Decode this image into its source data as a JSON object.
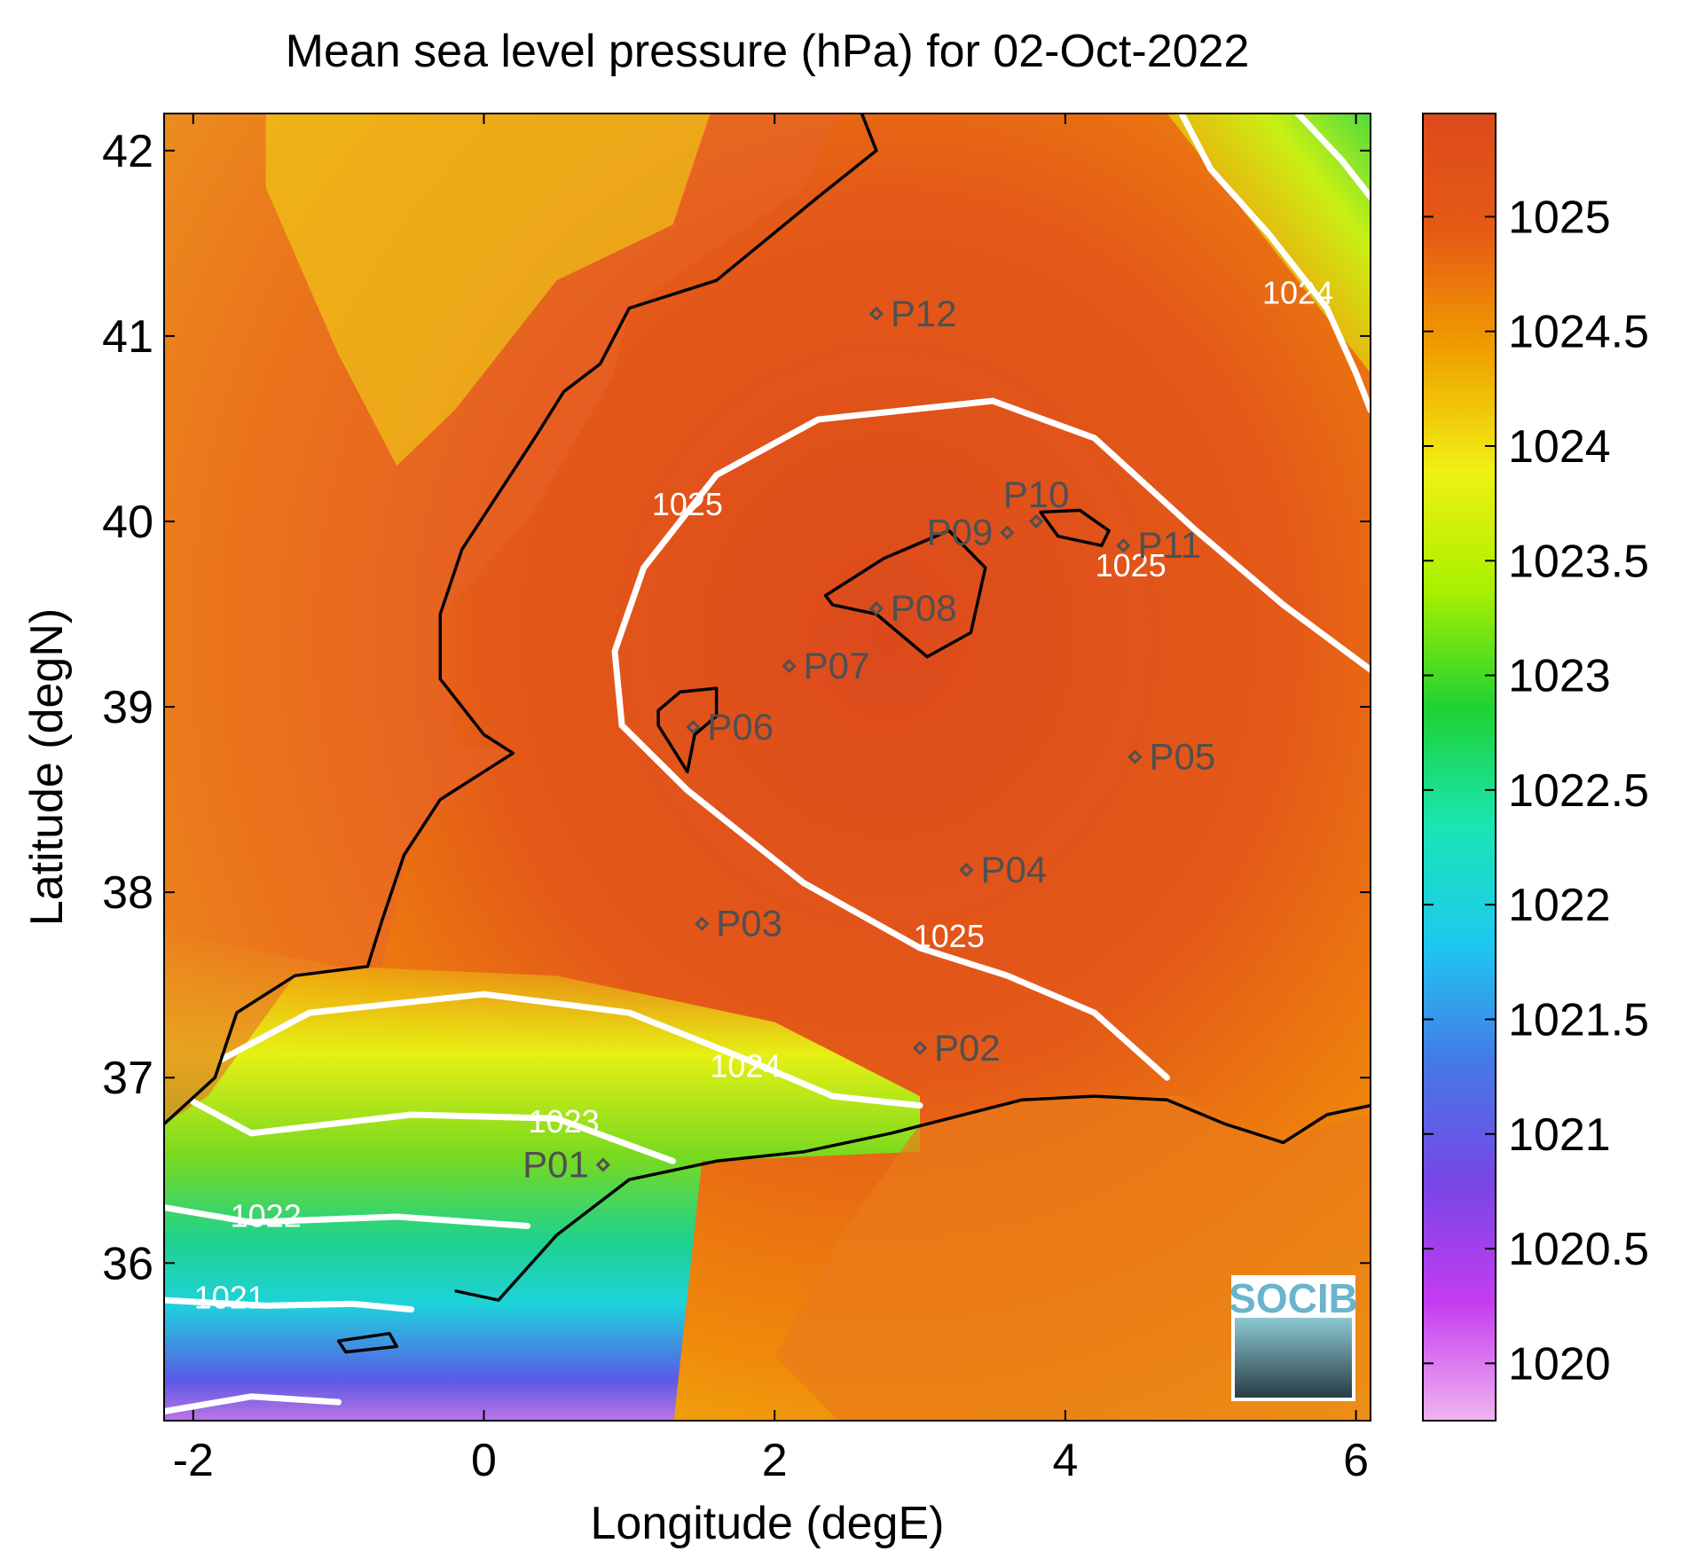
{
  "title": "Mean sea level pressure (hPa) for 02-Oct-2022",
  "x_axis": {
    "label": "Longitude (degE)",
    "min": -2.2,
    "max": 6.1,
    "ticks": [
      {
        "value": -2,
        "label": "-2"
      },
      {
        "value": 0,
        "label": "0"
      },
      {
        "value": 2,
        "label": "2"
      },
      {
        "value": 4,
        "label": "4"
      },
      {
        "value": 6,
        "label": "6"
      }
    ]
  },
  "y_axis": {
    "label": "Latitude (degN)",
    "min": 35.15,
    "max": 42.2,
    "ticks": [
      {
        "value": 36,
        "label": "36"
      },
      {
        "value": 37,
        "label": "37"
      },
      {
        "value": 38,
        "label": "38"
      },
      {
        "value": 39,
        "label": "39"
      },
      {
        "value": 40,
        "label": "40"
      },
      {
        "value": 41,
        "label": "41"
      },
      {
        "value": 42,
        "label": "42"
      }
    ]
  },
  "colorbar": {
    "min": 1019.75,
    "max": 1025.45,
    "ticks": [
      {
        "value": 1020,
        "label": "1020"
      },
      {
        "value": 1020.5,
        "label": "1020.5"
      },
      {
        "value": 1021,
        "label": "1021"
      },
      {
        "value": 1021.5,
        "label": "1021.5"
      },
      {
        "value": 1022,
        "label": "1022"
      },
      {
        "value": 1022.5,
        "label": "1022.5"
      },
      {
        "value": 1023,
        "label": "1023"
      },
      {
        "value": 1023.5,
        "label": "1023.5"
      },
      {
        "value": 1024,
        "label": "1024"
      },
      {
        "value": 1024.5,
        "label": "1024.5"
      },
      {
        "value": 1025,
        "label": "1025"
      }
    ],
    "colors": [
      "#f0b4f0",
      "#c43cf0",
      "#7846e6",
      "#4678e6",
      "#1ec8f0",
      "#19e6b4",
      "#1ed232",
      "#aaf000",
      "#f0f014",
      "#f0a000",
      "#e65a14",
      "#dc4a1c"
    ]
  },
  "contours": [
    {
      "label": "1025",
      "label_positions": [
        [
          1.4,
          40.08
        ],
        [
          4.45,
          39.75
        ],
        [
          3.2,
          37.75
        ]
      ]
    },
    {
      "label": "1024",
      "label_positions": [
        [
          5.6,
          41.22
        ],
        [
          1.8,
          37.05
        ]
      ]
    },
    {
      "label": "1023",
      "label_positions": [
        [
          0.55,
          36.75
        ]
      ]
    },
    {
      "label": "1022",
      "label_positions": [
        [
          -1.5,
          36.24
        ]
      ]
    },
    {
      "label": "1021",
      "label_positions": [
        [
          -1.75,
          35.8
        ]
      ]
    }
  ],
  "stations": [
    {
      "name": "P01",
      "lon": 0.82,
      "lat": 36.53,
      "label_side": "left"
    },
    {
      "name": "P02",
      "lon": 3.0,
      "lat": 37.16,
      "label_side": "right"
    },
    {
      "name": "P03",
      "lon": 1.5,
      "lat": 37.83,
      "label_side": "right"
    },
    {
      "name": "P04",
      "lon": 3.32,
      "lat": 38.12,
      "label_side": "right"
    },
    {
      "name": "P05",
      "lon": 4.48,
      "lat": 38.73,
      "label_side": "right"
    },
    {
      "name": "P06",
      "lon": 1.44,
      "lat": 38.89,
      "label_side": "right"
    },
    {
      "name": "P07",
      "lon": 2.1,
      "lat": 39.22,
      "label_side": "right"
    },
    {
      "name": "P08",
      "lon": 2.7,
      "lat": 39.53,
      "label_side": "right"
    },
    {
      "name": "P09",
      "lon": 3.6,
      "lat": 39.94,
      "label_side": "left"
    },
    {
      "name": "P10",
      "lon": 3.8,
      "lat": 40.0,
      "label_side": "top"
    },
    {
      "name": "P11",
      "lon": 4.4,
      "lat": 39.87,
      "label_side": "right"
    },
    {
      "name": "P12",
      "lon": 2.7,
      "lat": 41.12,
      "label_side": "right"
    }
  ],
  "logo_text": "SOCIB",
  "colors": {
    "contour": "#ffffff",
    "coastline": "#000000",
    "station_marker": "#505050",
    "logo_text": "#6ab4cc"
  }
}
